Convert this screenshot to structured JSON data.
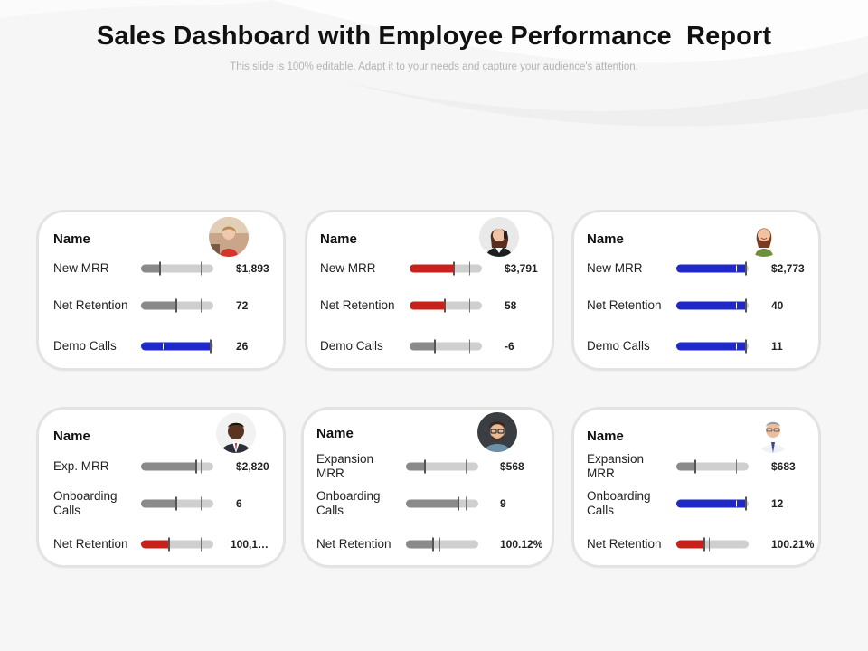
{
  "header": {
    "title": "Sales Dashboard with Employee Performance  Report",
    "subtitle": "This slide is 100% editable. Adapt it to your needs and capture your audience's attention."
  },
  "colors": {
    "grey": "#8a8a8a",
    "red": "#c8201b",
    "blue": "#1f28c8",
    "track": "#cfcfcf"
  },
  "cards": [
    {
      "name": "Name",
      "avatar": "woman-red-top-avatar",
      "metrics": [
        {
          "label": "New MRR",
          "value": "$1,893",
          "fill": 0.28,
          "color": "grey",
          "target": 0.83
        },
        {
          "label": "Net Retention",
          "value": "72",
          "fill": 0.5,
          "color": "grey",
          "target": 0.83
        },
        {
          "label": "Demo Calls",
          "value": "26",
          "fill": 0.98,
          "color": "blue",
          "target": 0.3
        }
      ]
    },
    {
      "name": "Name",
      "avatar": "woman-phone-avatar",
      "metrics": [
        {
          "label": "New MRR",
          "value": "$3,791",
          "fill": 0.63,
          "color": "red",
          "target": 0.83
        },
        {
          "label": "Net Retention",
          "value": "58",
          "fill": 0.5,
          "color": "red",
          "target": 0.83
        },
        {
          "label": "Demo Calls",
          "value": "-6",
          "fill": 0.36,
          "color": "grey",
          "target": 0.83
        }
      ]
    },
    {
      "name": "Name",
      "avatar": "woman-smiling-avatar",
      "metrics": [
        {
          "label": "New MRR",
          "value": "$2,773",
          "fill": 0.98,
          "color": "blue",
          "target": 0.83
        },
        {
          "label": "Net Retention",
          "value": "40",
          "fill": 0.98,
          "color": "blue",
          "target": 0.83
        },
        {
          "label": "Demo Calls",
          "value": "11",
          "fill": 0.98,
          "color": "blue",
          "target": 0.83
        }
      ]
    },
    {
      "name": "Name",
      "avatar": "man-suit-avatar",
      "metrics": [
        {
          "label": "Exp. MRR",
          "value": "$2,820",
          "fill": 0.78,
          "color": "grey",
          "target": 0.83
        },
        {
          "label": "Onboarding Calls",
          "value": "6",
          "fill": 0.5,
          "color": "grey",
          "target": 0.83
        },
        {
          "label": "Net Retention",
          "value": "100,1…",
          "fill": 0.4,
          "color": "red",
          "target": 0.83
        }
      ]
    },
    {
      "name": "Name",
      "avatar": "man-glasses-avatar",
      "metrics": [
        {
          "label": "Expansion MRR",
          "value": "$568",
          "fill": 0.27,
          "color": "grey",
          "target": 0.83
        },
        {
          "label": "Onboarding Calls",
          "value": "9",
          "fill": 0.74,
          "color": "grey",
          "target": 0.83
        },
        {
          "label": "Net Retention",
          "value": "100.12%",
          "fill": 0.39,
          "color": "grey",
          "target": 0.46
        }
      ]
    },
    {
      "name": "Name",
      "avatar": "man-tie-avatar",
      "metrics": [
        {
          "label": "Expansion MRR",
          "value": "$683",
          "fill": 0.28,
          "color": "grey",
          "target": 0.83
        },
        {
          "label": "Onboarding Calls",
          "value": "12",
          "fill": 0.98,
          "color": "blue",
          "target": 0.83
        },
        {
          "label": "Net Retention",
          "value": "100.21%",
          "fill": 0.4,
          "color": "red",
          "target": 0.45
        }
      ]
    }
  ]
}
